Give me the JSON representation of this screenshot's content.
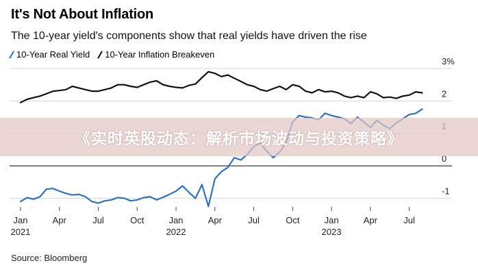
{
  "title": "It's Not About Inflation",
  "subtitle": "The 10-year yield's components show that real yields have driven the rise",
  "source": "Source: Bloomberg",
  "overlay_text": "《实时英股动态：解析市场波动与投资策略》",
  "colors": {
    "real": "#2a72c9",
    "breakeven": "#111111",
    "grid": "#d4d4d4",
    "zero": "#000000"
  },
  "chart_data": {
    "type": "line",
    "title": "It's Not About Inflation",
    "xlabel": "",
    "ylabel": "%",
    "ylim": [
      -1.35,
      3.0
    ],
    "xlim": [
      0,
      31.5
    ],
    "y_ticks": [
      {
        "value": 3,
        "label": "3%"
      },
      {
        "value": 2,
        "label": "2"
      },
      {
        "value": 1,
        "label": "1"
      },
      {
        "value": 0,
        "label": "0"
      },
      {
        "value": -1,
        "label": "-1"
      }
    ],
    "x_ticks": [
      {
        "value": 0,
        "month": "Jan",
        "year": "2021"
      },
      {
        "value": 3,
        "month": "Apr",
        "year": ""
      },
      {
        "value": 6,
        "month": "Jul",
        "year": ""
      },
      {
        "value": 9,
        "month": "Oct",
        "year": ""
      },
      {
        "value": 12,
        "month": "Jan",
        "year": "2022"
      },
      {
        "value": 15,
        "month": "Apr",
        "year": ""
      },
      {
        "value": 18,
        "month": "Jul",
        "year": ""
      },
      {
        "value": 21,
        "month": "Oct",
        "year": ""
      },
      {
        "value": 24,
        "month": "Jan",
        "year": "2023"
      },
      {
        "value": 27,
        "month": "Apr",
        "year": ""
      },
      {
        "value": 30,
        "month": "Jul",
        "year": ""
      }
    ],
    "series": [
      {
        "name": "10-Year Real Yield",
        "color": "#2a72c9",
        "x": [
          0,
          0.5,
          1.0,
          1.5,
          2.0,
          2.5,
          3.0,
          3.5,
          4.0,
          4.5,
          5.0,
          5.5,
          6.0,
          6.5,
          7.0,
          7.5,
          8.0,
          8.5,
          9.0,
          9.5,
          10.0,
          10.5,
          11.0,
          11.5,
          12.0,
          12.5,
          13.0,
          13.5,
          14.0,
          14.5,
          15.0,
          15.5,
          16.0,
          16.5,
          17.0,
          17.5,
          18.0,
          18.5,
          19.0,
          19.5,
          20.0,
          20.5,
          21.0,
          21.5,
          22.0,
          22.5,
          23.0,
          23.5,
          24.0,
          24.5,
          25.0,
          25.5,
          26.0,
          26.5,
          27.0,
          27.5,
          28.0,
          28.5,
          29.0,
          29.5,
          30.0,
          30.5,
          31.0
        ],
        "values": [
          -1.1,
          -0.98,
          -1.03,
          -0.95,
          -0.72,
          -0.7,
          -0.78,
          -0.85,
          -0.9,
          -0.88,
          -0.95,
          -1.1,
          -1.15,
          -1.08,
          -1.05,
          -0.98,
          -1.0,
          -1.08,
          -1.05,
          -0.98,
          -0.95,
          -1.05,
          -0.97,
          -0.88,
          -0.78,
          -0.62,
          -0.82,
          -1.0,
          -0.58,
          -1.25,
          -0.4,
          -0.18,
          -0.05,
          0.25,
          0.18,
          0.35,
          0.6,
          0.7,
          0.45,
          0.25,
          0.42,
          0.72,
          1.35,
          1.55,
          1.5,
          1.48,
          1.42,
          1.62,
          1.55,
          1.5,
          1.45,
          1.3,
          1.5,
          1.35,
          1.18,
          1.4,
          1.25,
          1.15,
          1.32,
          1.45,
          1.58,
          1.62,
          1.75
        ]
      },
      {
        "name": "10-Year Inflation Breakeven",
        "color": "#111111",
        "x": [
          0,
          0.5,
          1.0,
          1.5,
          2.0,
          2.5,
          3.0,
          3.5,
          4.0,
          4.5,
          5.0,
          5.5,
          6.0,
          6.5,
          7.0,
          7.5,
          8.0,
          8.5,
          9.0,
          9.5,
          10.0,
          10.5,
          11.0,
          11.5,
          12.0,
          12.5,
          13.0,
          13.5,
          14.0,
          14.5,
          15.0,
          15.5,
          16.0,
          16.5,
          17.0,
          17.5,
          18.0,
          18.5,
          19.0,
          19.5,
          20.0,
          20.5,
          21.0,
          21.5,
          22.0,
          22.5,
          23.0,
          23.5,
          24.0,
          24.5,
          25.0,
          25.5,
          26.0,
          26.5,
          27.0,
          27.5,
          28.0,
          28.5,
          29.0,
          29.5,
          30.0,
          30.5,
          31.0
        ],
        "values": [
          1.95,
          2.05,
          2.1,
          2.15,
          2.22,
          2.3,
          2.32,
          2.35,
          2.45,
          2.4,
          2.35,
          2.3,
          2.3,
          2.35,
          2.4,
          2.5,
          2.5,
          2.45,
          2.42,
          2.5,
          2.58,
          2.62,
          2.5,
          2.45,
          2.42,
          2.4,
          2.48,
          2.52,
          2.72,
          2.9,
          2.85,
          2.75,
          2.8,
          2.7,
          2.6,
          2.5,
          2.45,
          2.35,
          2.3,
          2.38,
          2.45,
          2.35,
          2.5,
          2.45,
          2.3,
          2.25,
          2.35,
          2.28,
          2.3,
          2.25,
          2.15,
          2.1,
          2.15,
          2.1,
          2.28,
          2.22,
          2.1,
          2.12,
          2.08,
          2.15,
          2.18,
          2.28,
          2.25
        ]
      }
    ]
  }
}
